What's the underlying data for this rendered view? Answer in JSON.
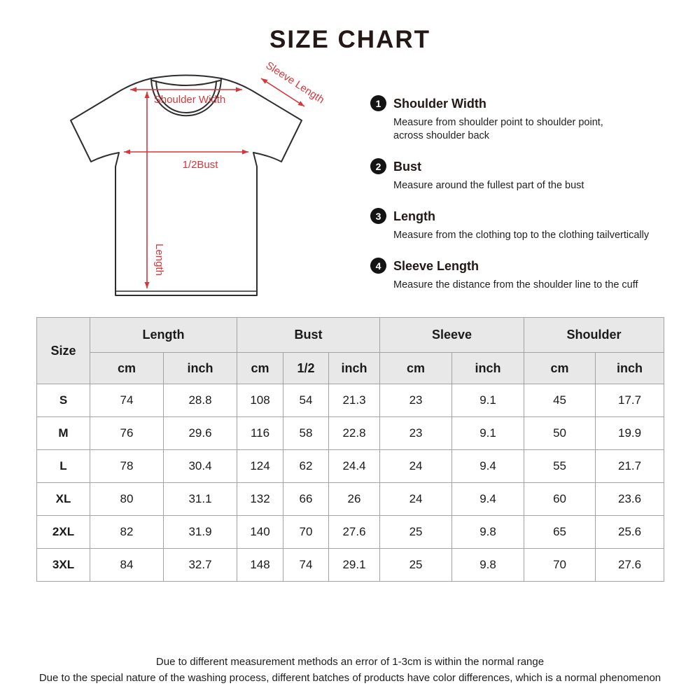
{
  "title": "SIZE CHART",
  "diagram": {
    "annotation_color": "#d5373b",
    "labels": {
      "shoulder_width": "Shoulder Width",
      "sleeve_length": "Sleeve Length",
      "half_bust": "1/2Bust",
      "length": "Length"
    }
  },
  "legend": [
    {
      "num": "1",
      "title": "Shoulder Width",
      "desc": [
        "Measure from shoulder point to shoulder point,",
        "across shoulder back"
      ]
    },
    {
      "num": "2",
      "title": "Bust",
      "desc": [
        "Measure around the fullest part of the bust"
      ]
    },
    {
      "num": "3",
      "title": "Length",
      "desc": [
        "Measure from the clothing top to the clothing tailvertically"
      ]
    },
    {
      "num": "4",
      "title": "Sleeve Length",
      "desc": [
        "Measure the distance from the shoulder line to the cuff"
      ]
    }
  ],
  "chart_data": {
    "type": "table",
    "title": "SIZE CHART",
    "header": {
      "size_label": "Size",
      "groups": [
        {
          "label": "Length",
          "subs": [
            "cm",
            "inch"
          ]
        },
        {
          "label": "Bust",
          "subs": [
            "cm",
            "1/2",
            "inch"
          ]
        },
        {
          "label": "Sleeve",
          "subs": [
            "cm",
            "inch"
          ]
        },
        {
          "label": "Shoulder",
          "subs": [
            "cm",
            "inch"
          ]
        }
      ]
    },
    "rows": [
      {
        "size": "S",
        "values": [
          "74",
          "28.8",
          "108",
          "54",
          "21.3",
          "23",
          "9.1",
          "45",
          "17.7"
        ]
      },
      {
        "size": "M",
        "values": [
          "76",
          "29.6",
          "116",
          "58",
          "22.8",
          "23",
          "9.1",
          "50",
          "19.9"
        ]
      },
      {
        "size": "L",
        "values": [
          "78",
          "30.4",
          "124",
          "62",
          "24.4",
          "24",
          "9.4",
          "55",
          "21.7"
        ]
      },
      {
        "size": "XL",
        "values": [
          "80",
          "31.1",
          "132",
          "66",
          "26",
          "24",
          "9.4",
          "60",
          "23.6"
        ]
      },
      {
        "size": "2XL",
        "values": [
          "82",
          "31.9",
          "140",
          "70",
          "27.6",
          "25",
          "9.8",
          "65",
          "25.6"
        ]
      },
      {
        "size": "3XL",
        "values": [
          "84",
          "32.7",
          "148",
          "74",
          "29.1",
          "25",
          "9.8",
          "70",
          "27.6"
        ]
      }
    ]
  },
  "footer": {
    "line1": "Due to different measurement methods an error of 1-3cm is within the normal range",
    "line2": "Due to the special nature of the washing process, different batches of products have color differences, which is a normal phenomenon"
  }
}
